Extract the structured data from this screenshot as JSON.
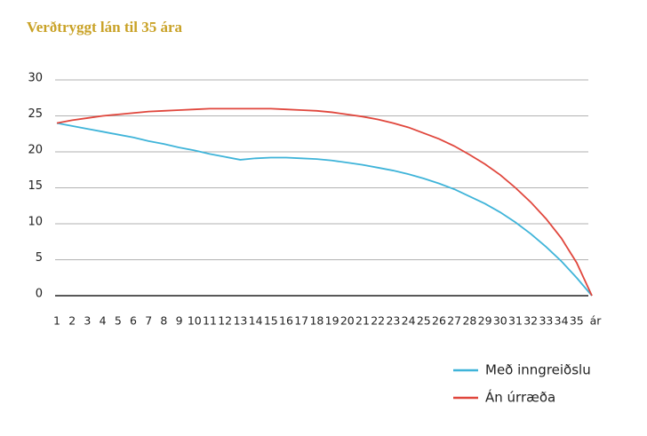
{
  "chart_data": {
    "type": "line",
    "title": "Verðtryggt lán til 35 ára",
    "categories": [
      "1",
      "2",
      "3",
      "4",
      "5",
      "6",
      "7",
      "8",
      "9",
      "10",
      "11",
      "12",
      "13",
      "14",
      "15",
      "16",
      "17",
      "18",
      "19",
      "20",
      "21",
      "22",
      "23",
      "24",
      "25",
      "26",
      "27",
      "28",
      "29",
      "30",
      "31",
      "32",
      "33",
      "34",
      "35",
      "ár"
    ],
    "series": [
      {
        "name": "Með inngreiðslu",
        "color": "#3fb4d9",
        "values": [
          24,
          23.6,
          23.2,
          22.8,
          22.4,
          22,
          21.5,
          21.1,
          20.6,
          20.2,
          19.7,
          19.3,
          18.9,
          19.1,
          19.2,
          19.2,
          19.1,
          19,
          18.8,
          18.5,
          18.2,
          17.8,
          17.4,
          16.9,
          16.3,
          15.6,
          14.8,
          13.8,
          12.8,
          11.6,
          10.2,
          8.6,
          6.8,
          4.8,
          2.5,
          0
        ]
      },
      {
        "name": "Án úrræða",
        "color": "#e0463c",
        "values": [
          24,
          24.4,
          24.7,
          25,
          25.2,
          25.4,
          25.6,
          25.7,
          25.8,
          25.9,
          26,
          26,
          26,
          26,
          26,
          25.9,
          25.8,
          25.7,
          25.5,
          25.2,
          24.9,
          24.5,
          24,
          23.4,
          22.6,
          21.8,
          20.8,
          19.6,
          18.3,
          16.8,
          15,
          13,
          10.7,
          8,
          4.6,
          0
        ]
      }
    ],
    "ylim": [
      0,
      30
    ],
    "yticks": [
      0,
      5,
      10,
      15,
      20,
      25,
      30
    ],
    "grid": true,
    "legend": "bottom-right"
  }
}
